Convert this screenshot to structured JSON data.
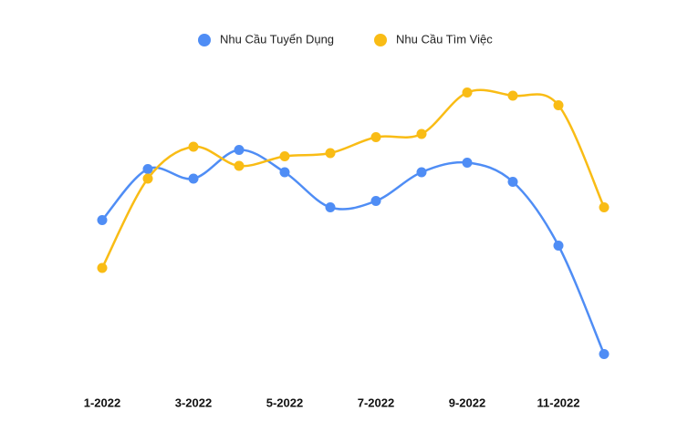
{
  "chart_data": {
    "type": "line",
    "categories": [
      "1-2022",
      null,
      "3-2022",
      null,
      "5-2022",
      null,
      "7-2022",
      null,
      "9-2022",
      null,
      "11-2022",
      null
    ],
    "series": [
      {
        "name": "Nhu Cầu Tuyển Dụng",
        "color": "#4f8df5",
        "values": [
          51,
          67,
          64,
          73,
          66,
          55,
          57,
          66,
          69,
          63,
          43,
          9
        ]
      },
      {
        "name": "Nhu Cầu Tìm Việc",
        "color": "#f9bc15",
        "values": [
          36,
          64,
          74,
          68,
          71,
          72,
          77,
          78,
          91,
          90,
          87,
          55
        ]
      }
    ],
    "ylim": [
      0,
      100
    ],
    "smooth": true,
    "legend": "top"
  }
}
